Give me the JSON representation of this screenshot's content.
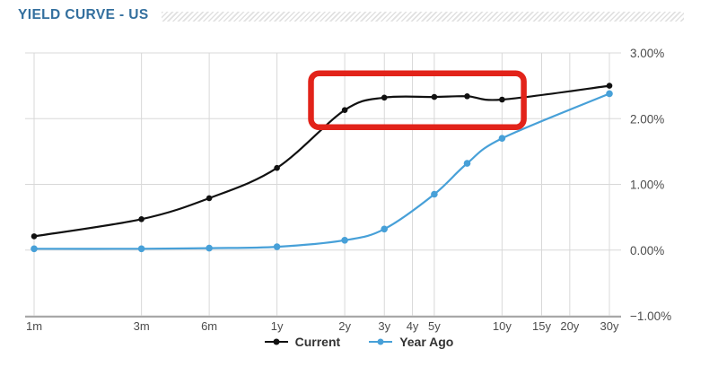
{
  "header": {
    "title": "YIELD CURVE - US"
  },
  "colors": {
    "title": "#336f9e",
    "current": "#111111",
    "year_ago": "#47a0d8",
    "grid": "#d8d8d8",
    "axis": "#a8a8a8",
    "tick_text": "#4d4d4d",
    "annotation": "#e2231a",
    "legend_text": "#333333"
  },
  "chart_data": {
    "type": "line",
    "title": "YIELD CURVE - US",
    "xlabel": "",
    "ylabel": "",
    "x_axis": {
      "scale": "log-months",
      "ticks": [
        {
          "label": "1m",
          "months": 1
        },
        {
          "label": "3m",
          "months": 3
        },
        {
          "label": "6m",
          "months": 6
        },
        {
          "label": "1y",
          "months": 12
        },
        {
          "label": "2y",
          "months": 24
        },
        {
          "label": "3y",
          "months": 36
        },
        {
          "label": "4y",
          "months": 48
        },
        {
          "label": "5y",
          "months": 60
        },
        {
          "label": "10y",
          "months": 120
        },
        {
          "label": "15y",
          "months": 180
        },
        {
          "label": "20y",
          "months": 240
        },
        {
          "label": "30y",
          "months": 360
        }
      ]
    },
    "y_axis": {
      "min": -1,
      "max": 3,
      "ticks": [
        {
          "label": "3.00%",
          "value": 3
        },
        {
          "label": "2.00%",
          "value": 2
        },
        {
          "label": "1.00%",
          "value": 1
        },
        {
          "label": "0.00%",
          "value": 0
        },
        {
          "label": "−1.00%",
          "value": -1
        }
      ]
    },
    "series": [
      {
        "name": "Current",
        "color_key": "current",
        "marker_radius": 3.3,
        "points": [
          {
            "maturity": "1m",
            "months": 1,
            "value": 0.21
          },
          {
            "maturity": "3m",
            "months": 3,
            "value": 0.47
          },
          {
            "maturity": "6m",
            "months": 6,
            "value": 0.79
          },
          {
            "maturity": "1y",
            "months": 12,
            "value": 1.25
          },
          {
            "maturity": "2y",
            "months": 24,
            "value": 2.13
          },
          {
            "maturity": "3y",
            "months": 36,
            "value": 2.32
          },
          {
            "maturity": "5y",
            "months": 60,
            "value": 2.33
          },
          {
            "maturity": "7y",
            "months": 84,
            "value": 2.34
          },
          {
            "maturity": "10y",
            "months": 120,
            "value": 2.29
          },
          {
            "maturity": "30y",
            "months": 360,
            "value": 2.5
          }
        ]
      },
      {
        "name": "Year Ago",
        "color_key": "year_ago",
        "marker_radius": 3.8,
        "points": [
          {
            "maturity": "1m",
            "months": 1,
            "value": 0.02
          },
          {
            "maturity": "3m",
            "months": 3,
            "value": 0.02
          },
          {
            "maturity": "6m",
            "months": 6,
            "value": 0.03
          },
          {
            "maturity": "1y",
            "months": 12,
            "value": 0.05
          },
          {
            "maturity": "2y",
            "months": 24,
            "value": 0.15
          },
          {
            "maturity": "3y",
            "months": 36,
            "value": 0.32
          },
          {
            "maturity": "5y",
            "months": 60,
            "value": 0.85
          },
          {
            "maturity": "7y",
            "months": 84,
            "value": 1.32
          },
          {
            "maturity": "10y",
            "months": 120,
            "value": 1.7
          },
          {
            "maturity": "30y",
            "months": 360,
            "value": 2.38
          }
        ]
      }
    ],
    "annotation": {
      "type": "rect",
      "x_from_months": 17,
      "x_to_months": 150,
      "y_from_pct": 1.87,
      "y_to_pct": 2.69,
      "stroke_width": 6.5,
      "corner_radius": 9
    },
    "legend_position": "bottom",
    "grid": true
  }
}
